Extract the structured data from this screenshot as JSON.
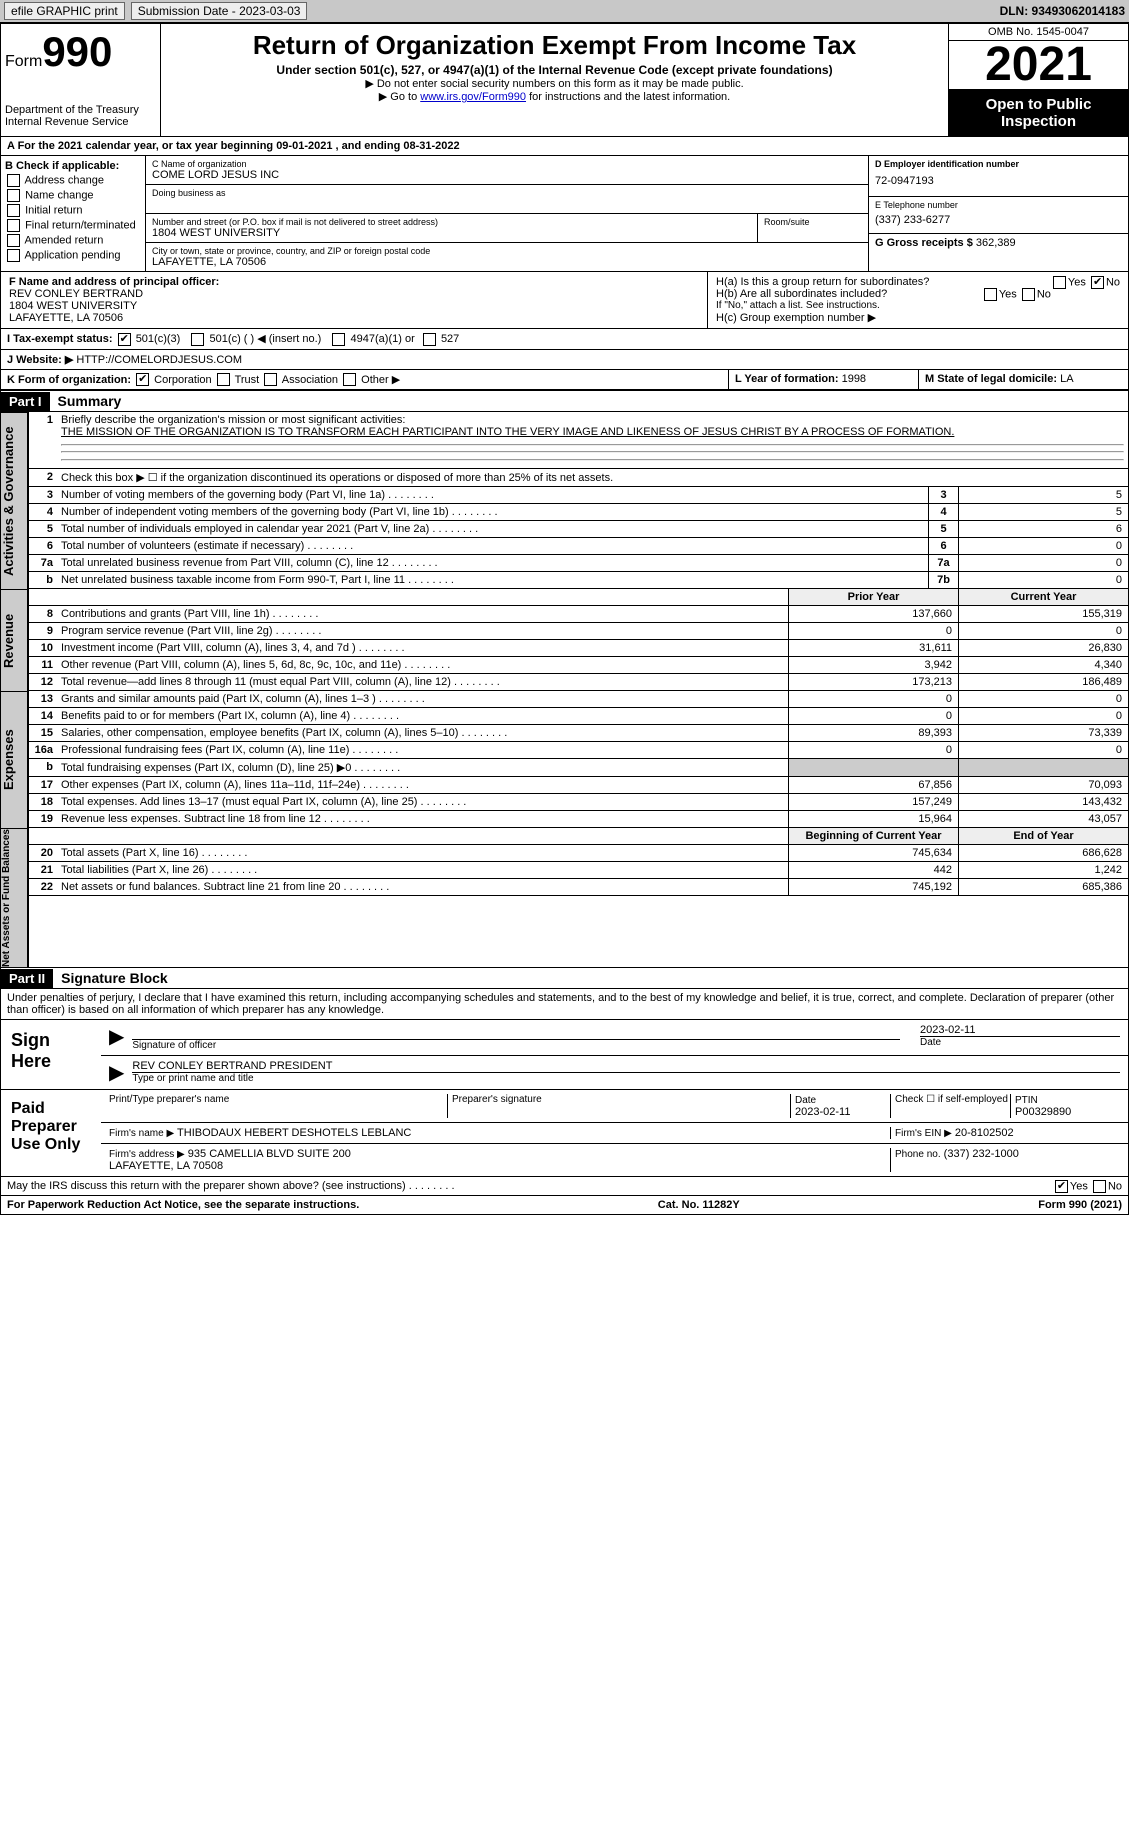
{
  "topbar": {
    "efile_label": "efile GRAPHIC print",
    "submission_label": "Submission Date - 2023-03-03",
    "dln_label": "DLN: 93493062014183"
  },
  "header": {
    "form_label": "Form",
    "form_number": "990",
    "dept": "Department of the Treasury\nInternal Revenue Service",
    "title": "Return of Organization Exempt From Income Tax",
    "subtitle": "Under section 501(c), 527, or 4947(a)(1) of the Internal Revenue Code (except private foundations)",
    "note1": "▶ Do not enter social security numbers on this form as it may be made public.",
    "note2_pre": "▶ Go to ",
    "note2_link": "www.irs.gov/Form990",
    "note2_post": " for instructions and the latest information.",
    "omb": "OMB No. 1545-0047",
    "year": "2021",
    "open": "Open to Public Inspection"
  },
  "A": {
    "line": "A For the 2021 calendar year, or tax year beginning 09-01-2021    , and ending 08-31-2022"
  },
  "B": {
    "title": "B Check if applicable:",
    "opts": [
      "Address change",
      "Name change",
      "Initial return",
      "Final return/terminated",
      "Amended return",
      "Application pending"
    ]
  },
  "C": {
    "name_lab": "C Name of organization",
    "name": "COME LORD JESUS INC",
    "dba_lab": "Doing business as",
    "addr_lab": "Number and street (or P.O. box if mail is not delivered to street address)",
    "room_lab": "Room/suite",
    "addr": "1804 WEST UNIVERSITY",
    "city_lab": "City or town, state or province, country, and ZIP or foreign postal code",
    "city": "LAFAYETTE, LA  70506"
  },
  "D": {
    "lab": "D Employer identification number",
    "val": "72-0947193"
  },
  "E": {
    "lab": "E Telephone number",
    "val": "(337) 233-6277"
  },
  "G": {
    "lab": "G Gross receipts $",
    "val": "362,389"
  },
  "F": {
    "lab": "F  Name and address of principal officer:",
    "name": "REV CONLEY BERTRAND",
    "addr1": "1804 WEST UNIVERSITY",
    "addr2": "LAFAYETTE, LA  70506"
  },
  "H": {
    "a": "H(a)  Is this a group return for subordinates?",
    "b": "H(b)  Are all subordinates included?",
    "b_note": "If \"No,\" attach a list. See instructions.",
    "c": "H(c)  Group exemption number ▶",
    "yes": "Yes",
    "no": "No"
  },
  "I": {
    "lab": "I     Tax-exempt status:",
    "o1": "501(c)(3)",
    "o2": "501(c) (   ) ◀ (insert no.)",
    "o3": "4947(a)(1) or",
    "o4": "527"
  },
  "J": {
    "lab": "J    Website: ▶",
    "val": "HTTP://COMELORDJESUS.COM"
  },
  "K": {
    "lab": "K Form of organization:",
    "o1": "Corporation",
    "o2": "Trust",
    "o3": "Association",
    "o4": "Other ▶"
  },
  "L": {
    "lab": "L Year of formation:",
    "val": "1998"
  },
  "M": {
    "lab": "M State of legal domicile:",
    "val": "LA"
  },
  "part1": {
    "hdr": "Part I",
    "title": "Summary",
    "tab_ag": "Activities & Governance",
    "tab_rev": "Revenue",
    "tab_exp": "Expenses",
    "tab_na": "Net Assets or Fund Balances",
    "q1": "Briefly describe the organization's mission or most significant activities:",
    "mission": "THE MISSION OF THE ORGANIZATION IS TO TRANSFORM EACH PARTICIPANT INTO THE VERY IMAGE AND LIKENESS OF JESUS CHRIST BY A PROCESS OF FORMATION.",
    "q2": "Check this box ▶ ☐  if the organization discontinued its operations or disposed of more than 25% of its net assets.",
    "rows_ag": [
      {
        "n": "3",
        "d": "Number of voting members of the governing body (Part VI, line 1a)",
        "b": "3",
        "v": "5"
      },
      {
        "n": "4",
        "d": "Number of independent voting members of the governing body (Part VI, line 1b)",
        "b": "4",
        "v": "5"
      },
      {
        "n": "5",
        "d": "Total number of individuals employed in calendar year 2021 (Part V, line 2a)",
        "b": "5",
        "v": "6"
      },
      {
        "n": "6",
        "d": "Total number of volunteers (estimate if necessary)",
        "b": "6",
        "v": "0"
      },
      {
        "n": "7a",
        "d": "Total unrelated business revenue from Part VIII, column (C), line 12",
        "b": "7a",
        "v": "0"
      },
      {
        "n": "b",
        "d": "Net unrelated business taxable income from Form 990-T, Part I, line 11",
        "b": "7b",
        "v": "0"
      }
    ],
    "col_prior": "Prior Year",
    "col_curr": "Current Year",
    "rows_rev": [
      {
        "n": "8",
        "d": "Contributions and grants (Part VIII, line 1h)",
        "p": "137,660",
        "c": "155,319"
      },
      {
        "n": "9",
        "d": "Program service revenue (Part VIII, line 2g)",
        "p": "0",
        "c": "0"
      },
      {
        "n": "10",
        "d": "Investment income (Part VIII, column (A), lines 3, 4, and 7d )",
        "p": "31,611",
        "c": "26,830"
      },
      {
        "n": "11",
        "d": "Other revenue (Part VIII, column (A), lines 5, 6d, 8c, 9c, 10c, and 11e)",
        "p": "3,942",
        "c": "4,340"
      },
      {
        "n": "12",
        "d": "Total revenue—add lines 8 through 11 (must equal Part VIII, column (A), line 12)",
        "p": "173,213",
        "c": "186,489"
      }
    ],
    "rows_exp": [
      {
        "n": "13",
        "d": "Grants and similar amounts paid (Part IX, column (A), lines 1–3 )",
        "p": "0",
        "c": "0"
      },
      {
        "n": "14",
        "d": "Benefits paid to or for members (Part IX, column (A), line 4)",
        "p": "0",
        "c": "0"
      },
      {
        "n": "15",
        "d": "Salaries, other compensation, employee benefits (Part IX, column (A), lines 5–10)",
        "p": "89,393",
        "c": "73,339"
      },
      {
        "n": "16a",
        "d": "Professional fundraising fees (Part IX, column (A), line 11e)",
        "p": "0",
        "c": "0"
      },
      {
        "n": "b",
        "d": "Total fundraising expenses (Part IX, column (D), line 25) ▶0",
        "p": "",
        "c": "",
        "shaded": true
      },
      {
        "n": "17",
        "d": "Other expenses (Part IX, column (A), lines 11a–11d, 11f–24e)",
        "p": "67,856",
        "c": "70,093"
      },
      {
        "n": "18",
        "d": "Total expenses. Add lines 13–17 (must equal Part IX, column (A), line 25)",
        "p": "157,249",
        "c": "143,432"
      },
      {
        "n": "19",
        "d": "Revenue less expenses. Subtract line 18 from line 12",
        "p": "15,964",
        "c": "43,057"
      }
    ],
    "col_beg": "Beginning of Current Year",
    "col_end": "End of Year",
    "rows_na": [
      {
        "n": "20",
        "d": "Total assets (Part X, line 16)",
        "p": "745,634",
        "c": "686,628"
      },
      {
        "n": "21",
        "d": "Total liabilities (Part X, line 26)",
        "p": "442",
        "c": "1,242"
      },
      {
        "n": "22",
        "d": "Net assets or fund balances. Subtract line 21 from line 20",
        "p": "745,192",
        "c": "685,386"
      }
    ]
  },
  "part2": {
    "hdr": "Part II",
    "title": "Signature Block",
    "decl": "Under penalties of perjury, I declare that I have examined this return, including accompanying schedules and statements, and to the best of my knowledge and belief, it is true, correct, and complete. Declaration of preparer (other than officer) is based on all information of which preparer has any knowledge.",
    "sign_here": "Sign Here",
    "sig_officer": "Signature of officer",
    "date_lab": "Date",
    "sig_date": "2023-02-11",
    "officer_name": "REV CONLEY BERTRAND  PRESIDENT",
    "type_name": "Type or print name and title",
    "paid": "Paid Preparer Use Only",
    "prep_name_lab": "Print/Type preparer's name",
    "prep_sig_lab": "Preparer's signature",
    "prep_date": "2023-02-11",
    "check_if": "Check ☐ if self-employed",
    "ptin_lab": "PTIN",
    "ptin": "P00329890",
    "firm_name_lab": "Firm's name     ▶",
    "firm_name": "THIBODAUX HEBERT DESHOTELS LEBLANC",
    "firm_ein_lab": "Firm's EIN ▶",
    "firm_ein": "20-8102502",
    "firm_addr_lab": "Firm's address ▶",
    "firm_addr": "935 CAMELLIA BLVD SUITE 200\nLAFAYETTE, LA  70508",
    "phone_lab": "Phone no.",
    "phone": "(337) 232-1000",
    "irs_discuss": "May the IRS discuss this return with the preparer shown above? (see instructions)",
    "yes": "Yes",
    "no": "No"
  },
  "footer": {
    "pra": "For Paperwork Reduction Act Notice, see the separate instructions.",
    "cat": "Cat. No. 11282Y",
    "form": "Form 990 (2021)"
  }
}
